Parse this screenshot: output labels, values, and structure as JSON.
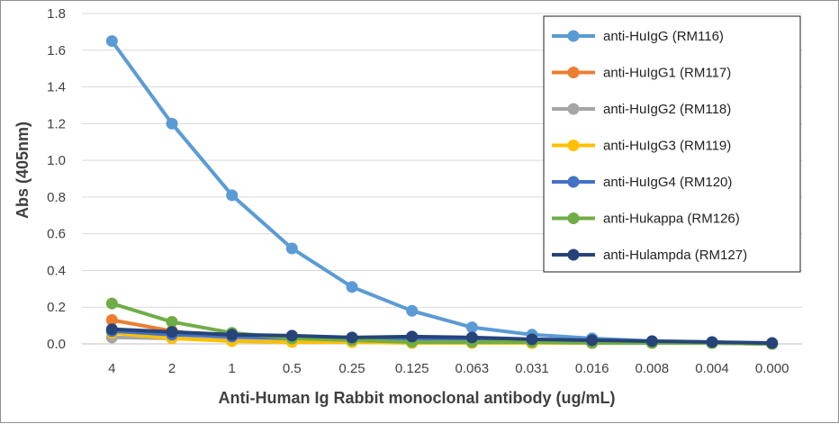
{
  "chart_data": {
    "type": "line",
    "title": "",
    "xlabel": "Anti-Human Ig  Rabbit monoclonal antibody (ug/mL)",
    "ylabel": "Abs (405nm)",
    "ylim": [
      0,
      1.8
    ],
    "yticks": [
      "0.0",
      "0.2",
      "0.4",
      "0.6",
      "0.8",
      "1.0",
      "1.2",
      "1.4",
      "1.6",
      "1.8"
    ],
    "categories": [
      "4",
      "2",
      "1",
      "0.5",
      "0.25",
      "0.125",
      "0.063",
      "0.031",
      "0.016",
      "0.008",
      "0.004",
      "0.000"
    ],
    "grid": true,
    "legend_position": "top-right",
    "series": [
      {
        "name": "anti-HuIgG (RM116)",
        "color": "#5b9bd5",
        "values": [
          1.65,
          1.2,
          0.81,
          0.52,
          0.31,
          0.18,
          0.09,
          0.05,
          0.03,
          0.015,
          0.01,
          0.0
        ]
      },
      {
        "name": "anti-HuIgG1 (RM117)",
        "color": "#ed7d31",
        "values": [
          0.13,
          0.07,
          0.03,
          0.02,
          0.015,
          0.01,
          0.01,
          0.005,
          0.005,
          0.005,
          0.005,
          0.0
        ]
      },
      {
        "name": "anti-HuIgG2 (RM118)",
        "color": "#a5a5a5",
        "values": [
          0.035,
          0.03,
          0.02,
          0.015,
          0.01,
          0.01,
          0.01,
          0.005,
          0.005,
          0.005,
          0.005,
          0.0
        ]
      },
      {
        "name": "anti-HuIgG3 (RM119)",
        "color": "#ffc000",
        "values": [
          0.06,
          0.03,
          0.015,
          0.01,
          0.01,
          0.005,
          0.005,
          0.005,
          0.005,
          0.005,
          0.005,
          0.0
        ]
      },
      {
        "name": "anti-HuIgG4 (RM120)",
        "color": "#4472c4",
        "values": [
          0.07,
          0.05,
          0.04,
          0.03,
          0.03,
          0.02,
          0.02,
          0.015,
          0.01,
          0.01,
          0.005,
          0.0
        ]
      },
      {
        "name": "anti-Hukappa (RM126)",
        "color": "#70ad47",
        "values": [
          0.22,
          0.12,
          0.06,
          0.03,
          0.02,
          0.01,
          0.01,
          0.01,
          0.005,
          0.005,
          0.005,
          0.0
        ]
      },
      {
        "name": "anti-Hulampda (RM127)",
        "color": "#264478",
        "values": [
          0.08,
          0.065,
          0.05,
          0.045,
          0.035,
          0.04,
          0.035,
          0.025,
          0.02,
          0.015,
          0.01,
          0.005
        ]
      }
    ]
  }
}
